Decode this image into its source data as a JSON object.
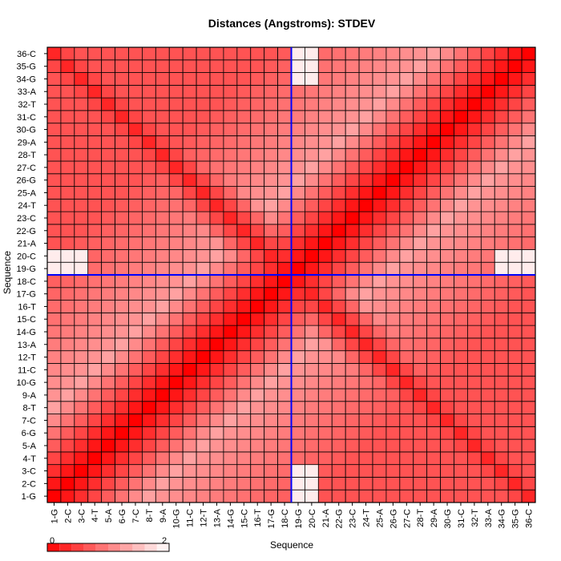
{
  "chart_data": {
    "type": "heatmap",
    "title": "Distances (Angstroms):  STDEV",
    "xlabel": "Sequence",
    "ylabel": "Sequence",
    "categories": [
      "1-G",
      "2-C",
      "3-C",
      "4-T",
      "5-A",
      "6-G",
      "7-C",
      "8-T",
      "9-A",
      "10-G",
      "11-C",
      "12-T",
      "13-A",
      "14-G",
      "15-C",
      "16-T",
      "17-G",
      "18-C",
      "19-G",
      "20-C",
      "21-A",
      "22-G",
      "23-C",
      "24-T",
      "25-A",
      "26-G",
      "27-C",
      "28-T",
      "29-A",
      "30-G",
      "31-C",
      "32-T",
      "33-A",
      "34-G",
      "35-G",
      "36-C"
    ],
    "value_range": [
      0,
      2
    ],
    "colormap": {
      "low": "#ff0000",
      "high": "#ffffff"
    },
    "colorbar": {
      "min_label": "0",
      "max_label": "2"
    },
    "marker_lines": {
      "vertical_category": "19-G",
      "horizontal_category": "19-G",
      "color": "#0000ff"
    },
    "model": "symmetric matrix; diagonal ~0; values rise with |i-j| up to ~1.2 at 7 apart, then decline; anti-diagonal (i+j=37) low ~0.3; rows/cols 19-G and 20-C near 2 at the outer columns 1-3 and 34-36",
    "grid": true,
    "legend": "bottom-left"
  }
}
